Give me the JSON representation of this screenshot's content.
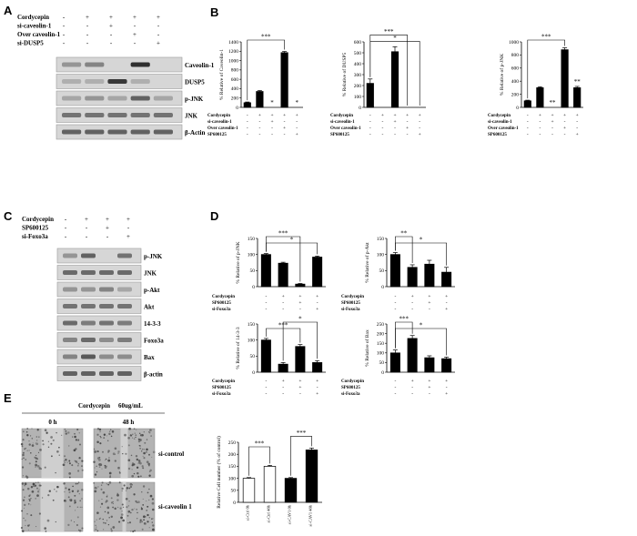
{
  "panels": {
    "A": "A",
    "B": "B",
    "C": "C",
    "D": "D",
    "E": "E"
  },
  "panel_A": {
    "row_labels": [
      "Cordycepin",
      "si-caveolin-1",
      "Over caveolin-1",
      "si-DUSP5"
    ],
    "signs": [
      [
        "-",
        "+",
        "+",
        "+",
        "+"
      ],
      [
        "-",
        "-",
        "+",
        "-",
        "-"
      ],
      [
        "-",
        "-",
        "-",
        "+",
        "-"
      ],
      [
        "-",
        "-",
        "-",
        "-",
        "+"
      ]
    ],
    "blots": [
      "Caveolin-1",
      "DUSP5",
      "p-JNK",
      "JNK",
      "β-Actin"
    ]
  },
  "panel_C": {
    "row_labels": [
      "Cordycepin",
      "SP600125",
      "si-Foxo3a"
    ],
    "signs": [
      [
        "-",
        "+",
        "+",
        "+"
      ],
      [
        "-",
        "-",
        "+",
        "-"
      ],
      [
        "-",
        "-",
        "-",
        "+"
      ]
    ],
    "blots": [
      "p-JNK",
      "JNK",
      "p-Akt",
      "Akt",
      "14-3-3",
      "Foxo3a",
      "Bax",
      "β-actin"
    ]
  },
  "panel_B_rows": {
    "labels": [
      "Cordycepin",
      "si-caveolin-1",
      "Over caveolin-1",
      "SP600125"
    ],
    "signs": [
      [
        "-",
        "+",
        "+",
        "+",
        "+"
      ],
      [
        "-",
        "-",
        "+",
        "-",
        "-"
      ],
      [
        "-",
        "-",
        "-",
        "+",
        "-"
      ],
      [
        "-",
        "-",
        "-",
        "-",
        "+"
      ]
    ]
  },
  "panel_D_rows": {
    "labels": [
      "Cordycepin",
      "SP600125",
      "si-Foxo3a"
    ],
    "signs": [
      [
        "-",
        "+",
        "+",
        "+"
      ],
      [
        "-",
        "-",
        "+",
        "-"
      ],
      [
        "-",
        "-",
        "-",
        "+"
      ]
    ]
  },
  "panel_E": {
    "treatment": "Cordycepin",
    "dose": "60ug/mL",
    "time_0": "0 h",
    "time_48": "48 h",
    "row_labels": [
      "si-control",
      "si-caveolin 1"
    ]
  },
  "chart_data": [
    {
      "id": "B1",
      "type": "bar",
      "title": "",
      "ylabel": "% Relative of Caveolin-1",
      "ylim": [
        0,
        1400
      ],
      "yticks": [
        0,
        200,
        400,
        600,
        800,
        1000,
        1200,
        1400
      ],
      "values": [
        100,
        340,
        0,
        1170,
        0
      ],
      "errors": [
        15,
        20,
        0,
        25,
        0
      ],
      "stars_on_bars": [
        "",
        "",
        "*",
        "",
        "*"
      ],
      "brackets": [
        {
          "from": 0,
          "to": 3,
          "label": "***"
        }
      ]
    },
    {
      "id": "B2",
      "type": "bar",
      "title": "",
      "ylabel": "% Relative of DUSP5",
      "ylim": [
        0,
        600
      ],
      "yticks": [
        0,
        100,
        200,
        300,
        400,
        500,
        600
      ],
      "values": [
        220,
        0,
        510,
        0,
        0
      ],
      "errors": [
        40,
        0,
        45,
        0,
        0
      ],
      "stars_on_bars": [
        "",
        "",
        "",
        "",
        ""
      ],
      "brackets": [
        {
          "from": 0,
          "to": 4,
          "label": "*"
        },
        {
          "from": 0,
          "to": 3,
          "label": "***"
        }
      ]
    },
    {
      "id": "B3",
      "type": "bar",
      "title": "",
      "ylabel": "% Relative of p-JNK",
      "ylim": [
        0,
        1000
      ],
      "yticks": [
        0,
        200,
        400,
        600,
        800,
        1000
      ],
      "values": [
        100,
        300,
        0,
        880,
        300
      ],
      "errors": [
        10,
        15,
        0,
        30,
        20
      ],
      "stars_on_bars": [
        "",
        "",
        "**",
        "",
        "**"
      ],
      "brackets": [
        {
          "from": 0,
          "to": 3,
          "label": "***"
        }
      ]
    },
    {
      "id": "D1",
      "type": "bar",
      "title": "",
      "ylabel": "% Relative of p-JNK",
      "ylim": [
        0,
        150
      ],
      "yticks": [
        0,
        50,
        100,
        150
      ],
      "values": [
        100,
        73,
        8,
        92
      ],
      "errors": [
        3,
        3,
        2,
        3
      ],
      "stars_on_bars": [
        "",
        "",
        "",
        ""
      ],
      "brackets": [
        {
          "from": 0,
          "to": 3,
          "label": "*"
        },
        {
          "from": 0,
          "to": 2,
          "label": "***"
        }
      ]
    },
    {
      "id": "D2",
      "type": "bar",
      "title": "",
      "ylabel": "% Relative of p-Akt",
      "ylim": [
        0,
        150
      ],
      "yticks": [
        0,
        50,
        100,
        150
      ],
      "values": [
        100,
        60,
        70,
        45
      ],
      "errors": [
        6,
        8,
        12,
        15
      ],
      "stars_on_bars": [
        "",
        "",
        "",
        ""
      ],
      "brackets": [
        {
          "from": 0,
          "to": 3,
          "label": "*"
        },
        {
          "from": 0,
          "to": 1,
          "label": "**"
        }
      ]
    },
    {
      "id": "D3",
      "type": "bar",
      "title": "",
      "ylabel": "% Relative of 14-3-3",
      "ylim": [
        0,
        150
      ],
      "yticks": [
        0,
        50,
        100,
        150
      ],
      "values": [
        100,
        25,
        80,
        30
      ],
      "errors": [
        5,
        5,
        6,
        6
      ],
      "stars_on_bars": [
        "",
        "",
        "",
        ""
      ],
      "brackets": [
        {
          "from": 0,
          "to": 2,
          "label": "***"
        },
        {
          "from": 1,
          "to": 3,
          "label": "*"
        }
      ]
    },
    {
      "id": "D4",
      "type": "bar",
      "title": "",
      "ylabel": "% Relative of Bax",
      "ylim": [
        0,
        250
      ],
      "yticks": [
        0,
        50,
        100,
        150,
        200,
        250
      ],
      "values": [
        100,
        175,
        75,
        70
      ],
      "errors": [
        15,
        15,
        10,
        8
      ],
      "stars_on_bars": [
        "",
        "",
        "",
        ""
      ],
      "brackets": [
        {
          "from": 0,
          "to": 3,
          "label": "*"
        },
        {
          "from": 0,
          "to": 1,
          "label": "***"
        }
      ]
    },
    {
      "id": "E1",
      "type": "bar",
      "title": "",
      "ylabel": "Relative Cell number (% of control)",
      "ylim": [
        0,
        250
      ],
      "yticks": [
        0,
        50,
        100,
        150,
        200,
        250
      ],
      "categories": [
        "si-Ctrl 0h",
        "si-Ctrl 48h",
        "si-CAV1 0h",
        "si-CAV1 48h"
      ],
      "values": [
        100,
        150,
        100,
        218
      ],
      "errors": [
        3,
        4,
        3,
        8
      ],
      "fills": [
        "#ffffff",
        "#ffffff",
        "#000000",
        "#000000"
      ],
      "stars_on_bars": [
        "",
        "",
        "",
        ""
      ],
      "brackets": [
        {
          "from": 0,
          "to": 1,
          "label": "***"
        },
        {
          "from": 2,
          "to": 3,
          "label": "***"
        }
      ]
    }
  ]
}
